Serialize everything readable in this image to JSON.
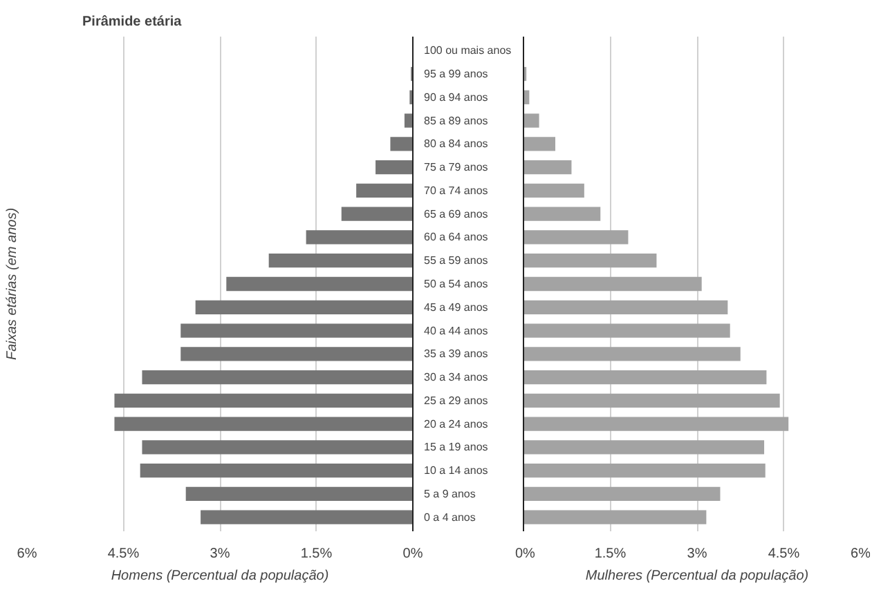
{
  "chart_data": [
    {
      "type": "bar",
      "orientation": "horizontal",
      "title": "Pirâmide etária",
      "ylabel": "Faixas etárias (em anos)",
      "xlabel": "Homens (Percentual da população)",
      "categories": [
        "100 ou mais anos",
        "95 a 99 anos",
        "90 a 94 anos",
        "85 a 89 anos",
        "80 a 84 anos",
        "75 a 79 anos",
        "70 a 74 anos",
        "65 a 69 anos",
        "60 a 64 anos",
        "55 a 59 anos",
        "50 a 54 anos",
        "45 a 49 anos",
        "40 a 44 anos",
        "35 a 39 anos",
        "30 a 34 anos",
        "25 a 29 anos",
        "20 a 24 anos",
        "15 a 19 anos",
        "10 a 14 anos",
        "5 a 9 anos",
        "0 a 4 anos"
      ],
      "series": [
        {
          "color": "#757575",
          "values": [
            null,
            0.03,
            0.05,
            0.13,
            0.35,
            0.58,
            0.88,
            1.11,
            1.66,
            2.24,
            2.9,
            3.38,
            3.61,
            3.61,
            4.21,
            4.64,
            4.64,
            4.21,
            4.24,
            3.53,
            3.3
          ]
        }
      ],
      "xlim": [
        6,
        0
      ],
      "xticks": [
        {
          "value": 6,
          "label": "6%"
        },
        {
          "value": 4.5,
          "label": "4.5%"
        },
        {
          "value": 3,
          "label": "3%"
        },
        {
          "value": 1.5,
          "label": "1.5%"
        },
        {
          "value": 0,
          "label": "0%"
        }
      ],
      "grid": "x"
    },
    {
      "type": "bar",
      "orientation": "horizontal",
      "xlabel": "Mulheres (Percentual da população)",
      "categories": [
        null,
        null,
        null,
        null,
        null,
        null,
        null,
        null,
        null,
        null,
        null,
        null,
        null,
        null,
        null,
        null,
        null,
        null,
        null,
        null,
        null
      ],
      "series": [
        {
          "color": "#a3a3a3",
          "values": [
            null,
            0.05,
            0.1,
            0.27,
            0.55,
            0.83,
            1.05,
            1.33,
            1.81,
            2.3,
            3.08,
            3.53,
            3.57,
            3.75,
            4.2,
            4.43,
            4.58,
            4.16,
            4.18,
            3.4,
            3.16
          ]
        }
      ],
      "xlim": [
        0,
        6
      ],
      "xticks": [
        {
          "value": 0,
          "label": "0%"
        },
        {
          "value": 1.5,
          "label": "1.5%"
        },
        {
          "value": 3,
          "label": "3%"
        },
        {
          "value": 4.5,
          "label": "4.5%"
        },
        {
          "value": 6,
          "label": "6%"
        }
      ],
      "grid": "x"
    }
  ]
}
